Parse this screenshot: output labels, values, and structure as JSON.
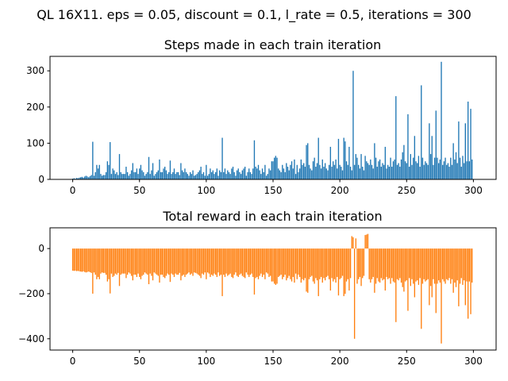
{
  "figure": {
    "suptitle": "QL 16X11. eps = 0.05, discount = 0.1, l_rate = 0.5, iterations = 300"
  },
  "chart_data": [
    {
      "type": "bar",
      "title": "Steps made in each train iteration",
      "xlabel": "",
      "ylabel": "",
      "color": "#1f77b4",
      "xlim": [
        -17,
        317
      ],
      "ylim": [
        0,
        340
      ],
      "xticks": [
        0,
        50,
        100,
        150,
        200,
        250,
        300
      ],
      "yticks": [
        0,
        100,
        200,
        300
      ],
      "grid": false,
      "x_start": 0,
      "values": [
        2,
        3,
        2,
        4,
        3,
        5,
        6,
        7,
        5,
        8,
        10,
        8,
        6,
        9,
        12,
        104,
        10,
        20,
        40,
        30,
        40,
        15,
        10,
        12,
        12,
        20,
        50,
        40,
        103,
        15,
        30,
        25,
        15,
        20,
        12,
        70,
        20,
        15,
        15,
        15,
        35,
        20,
        10,
        15,
        25,
        45,
        20,
        20,
        30,
        15,
        30,
        40,
        25,
        20,
        10,
        15,
        20,
        62,
        15,
        25,
        45,
        10,
        15,
        20,
        25,
        55,
        20,
        20,
        30,
        35,
        25,
        15,
        20,
        52,
        15,
        20,
        30,
        15,
        20,
        20,
        12,
        45,
        25,
        20,
        30,
        20,
        15,
        10,
        20,
        15,
        25,
        10,
        12,
        15,
        20,
        25,
        35,
        15,
        20,
        10,
        40,
        10,
        15,
        30,
        20,
        25,
        15,
        20,
        30,
        10,
        25,
        20,
        115,
        20,
        30,
        15,
        25,
        20,
        15,
        30,
        35,
        20,
        10,
        25,
        30,
        20,
        15,
        25,
        30,
        35,
        10,
        20,
        30,
        20,
        15,
        30,
        108,
        35,
        30,
        40,
        25,
        15,
        30,
        20,
        40,
        10,
        15,
        30,
        25,
        50,
        50,
        60,
        65,
        60,
        30,
        25,
        20,
        40,
        30,
        20,
        45,
        35,
        25,
        40,
        50,
        30,
        55,
        15,
        40,
        20,
        30,
        55,
        40,
        45,
        35,
        95,
        100,
        40,
        30,
        25,
        50,
        60,
        35,
        45,
        115,
        40,
        30,
        55,
        35,
        45,
        30,
        25,
        40,
        90,
        35,
        50,
        40,
        55,
        30,
        112,
        40,
        35,
        25,
        115,
        105,
        50,
        40,
        90,
        35,
        25,
        300,
        40,
        70,
        60,
        40,
        30,
        70,
        35,
        25,
        65,
        50,
        45,
        40,
        55,
        40,
        30,
        100,
        60,
        35,
        50,
        55,
        35,
        45,
        40,
        90,
        30,
        40,
        35,
        60,
        35,
        50,
        55,
        230,
        40,
        45,
        35,
        55,
        75,
        95,
        50,
        45,
        180,
        35,
        70,
        40,
        60,
        120,
        50,
        45,
        65,
        35,
        260,
        60,
        40,
        50,
        45,
        40,
        155,
        70,
        120,
        40,
        60,
        190,
        60,
        45,
        55,
        325,
        40,
        50,
        60,
        40,
        45,
        35,
        60,
        40,
        100,
        55,
        75,
        45,
        160,
        60,
        35,
        65,
        45,
        155,
        50,
        215,
        50,
        195,
        55
      ]
    },
    {
      "type": "bar",
      "title": "Total reward in each train iteration",
      "xlabel": "",
      "ylabel": "",
      "color": "#ff7f0e",
      "xlim": [
        -17,
        317
      ],
      "ylim": [
        -450,
        92
      ],
      "xticks": [
        0,
        50,
        100,
        150,
        200,
        250,
        300
      ],
      "yticks": [
        -400,
        -200,
        0
      ],
      "grid": false,
      "x_start": 0,
      "values": [
        -98,
        -99,
        -98,
        -100,
        -99,
        -101,
        -102,
        -103,
        -101,
        -104,
        -106,
        -104,
        -102,
        -105,
        -108,
        -200,
        -106,
        -116,
        -136,
        -126,
        -136,
        -111,
        -106,
        -108,
        -108,
        -116,
        -146,
        -136,
        -199,
        -111,
        -126,
        -121,
        -111,
        -116,
        -108,
        -166,
        -116,
        -111,
        -111,
        -111,
        -131,
        -116,
        -106,
        -111,
        -121,
        -141,
        -116,
        -116,
        -126,
        -111,
        -126,
        -136,
        -121,
        -116,
        -106,
        -111,
        -116,
        -158,
        -111,
        -121,
        -141,
        -106,
        -111,
        -116,
        -121,
        -151,
        -116,
        -116,
        -126,
        -131,
        -121,
        -111,
        -116,
        -148,
        -111,
        -116,
        -126,
        -111,
        -116,
        -116,
        -108,
        -141,
        -121,
        -116,
        -126,
        -116,
        -111,
        -106,
        -116,
        -111,
        -121,
        -106,
        -108,
        -111,
        -116,
        -121,
        -131,
        -111,
        -116,
        -106,
        -136,
        -106,
        -111,
        -126,
        -116,
        -121,
        -111,
        -116,
        -126,
        -106,
        -121,
        -116,
        -211,
        -116,
        -126,
        -111,
        -121,
        -116,
        -111,
        -126,
        -131,
        -116,
        -106,
        -121,
        -126,
        -116,
        -111,
        -121,
        -126,
        -131,
        -106,
        -116,
        -126,
        -116,
        -111,
        -126,
        -204,
        -131,
        -126,
        -136,
        -121,
        -111,
        -126,
        -116,
        -136,
        -106,
        -111,
        -126,
        -121,
        -146,
        -146,
        -156,
        -161,
        -156,
        -126,
        -121,
        -116,
        -136,
        -126,
        -116,
        -141,
        -131,
        -121,
        -136,
        -146,
        -126,
        -151,
        -111,
        -136,
        -116,
        -126,
        -151,
        -136,
        -141,
        -131,
        -191,
        -196,
        -136,
        -126,
        -121,
        -146,
        -156,
        -131,
        -141,
        -211,
        -136,
        -126,
        -151,
        -131,
        -141,
        -126,
        -121,
        -136,
        -186,
        -131,
        -146,
        -136,
        -151,
        -126,
        -208,
        -136,
        -131,
        -121,
        -211,
        -201,
        -146,
        -136,
        -186,
        -131,
        55,
        50,
        -400,
        45,
        -156,
        -136,
        -126,
        -166,
        -131,
        -121,
        60,
        62,
        65,
        -136,
        -151,
        -136,
        -126,
        -196,
        -156,
        -131,
        -146,
        -151,
        -131,
        -141,
        -136,
        -186,
        -126,
        -136,
        -131,
        -156,
        -131,
        -146,
        -151,
        -326,
        -136,
        -141,
        -131,
        -151,
        -171,
        -191,
        -146,
        -141,
        -276,
        -131,
        -166,
        -136,
        -156,
        -216,
        -146,
        -141,
        -161,
        -131,
        -356,
        -156,
        -136,
        -146,
        -141,
        -136,
        -251,
        -166,
        -216,
        -136,
        -156,
        -286,
        -156,
        -141,
        -151,
        -421,
        -136,
        -146,
        -156,
        -136,
        -141,
        -131,
        -156,
        -136,
        -196,
        -151,
        -171,
        -141,
        -256,
        -156,
        -131,
        -161,
        -141,
        -251,
        -146,
        -311,
        -146,
        -291,
        -151
      ]
    }
  ]
}
